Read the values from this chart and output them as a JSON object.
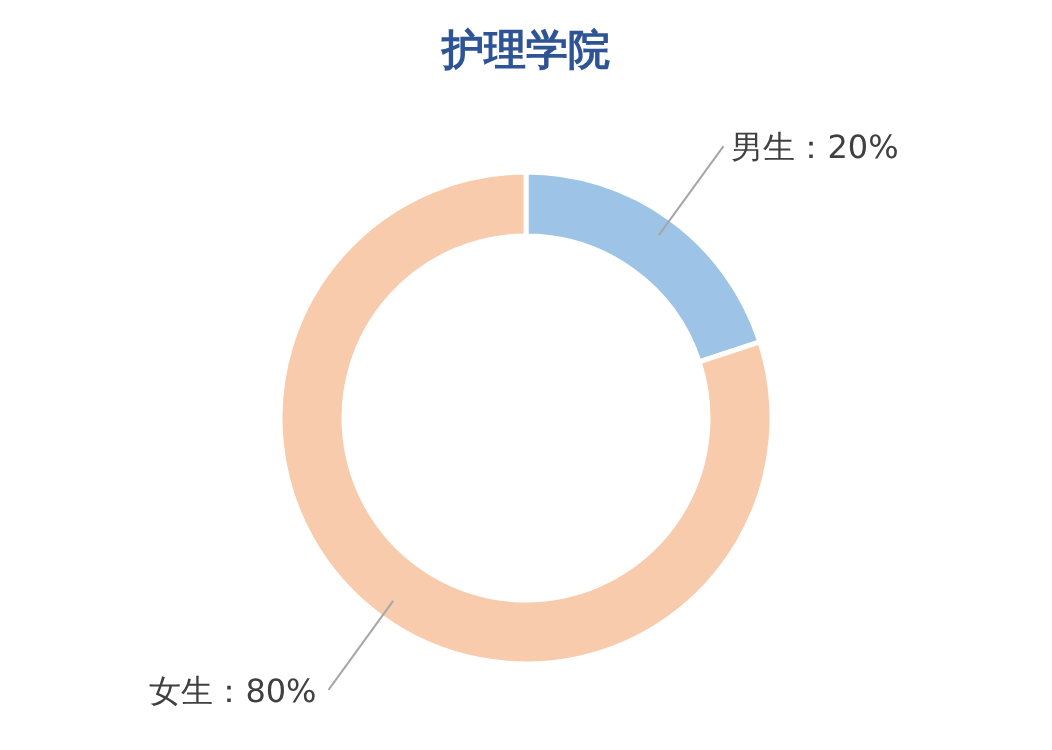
{
  "chart_data": {
    "type": "donut",
    "title": "护理学院",
    "categories": [
      "男生",
      "女生"
    ],
    "values": [
      20,
      80
    ],
    "value_labels": [
      "：20%",
      "：80%"
    ],
    "colors": [
      "#9dc3e6",
      "#f8cbad"
    ]
  }
}
